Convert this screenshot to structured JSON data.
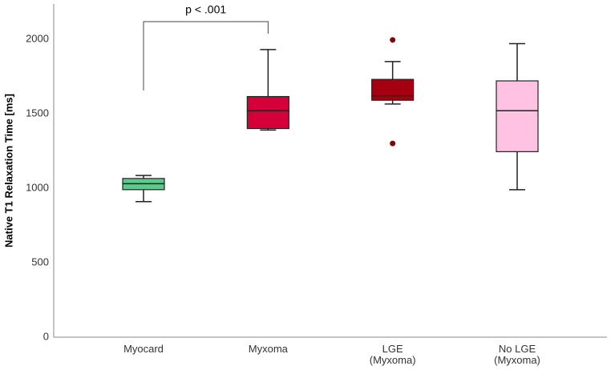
{
  "chart_data": {
    "type": "box",
    "y_label": "Native T1 Relaxation Time [ms]",
    "annotation": "p < .001",
    "categories": [
      "Myocard",
      "Myxoma",
      "LGE\n(Myxoma)",
      "No LGE\n(Myxoma)"
    ],
    "colors": [
      "#5dc98a",
      "#d5003a",
      "#a5000f",
      "#ffc2e2"
    ],
    "outlier_color": "#7a0a0a",
    "boxes": [
      {
        "min": 910,
        "q1": 990,
        "median": 1030,
        "q3": 1065,
        "max": 1085,
        "outliers": []
      },
      {
        "min": 1390,
        "q1": 1400,
        "median": 1520,
        "q3": 1615,
        "max": 1930,
        "outliers": []
      },
      {
        "min": 1565,
        "q1": 1590,
        "median": 1620,
        "q3": 1730,
        "max": 1850,
        "outliers": [
          1995,
          1300
        ]
      },
      {
        "min": 990,
        "q1": 1245,
        "median": 1520,
        "q3": 1720,
        "max": 1970,
        "outliers": []
      }
    ],
    "ylim": [
      0,
      2236
    ],
    "yticks": [
      0,
      500,
      1000,
      1500,
      2000
    ],
    "grid": false
  }
}
